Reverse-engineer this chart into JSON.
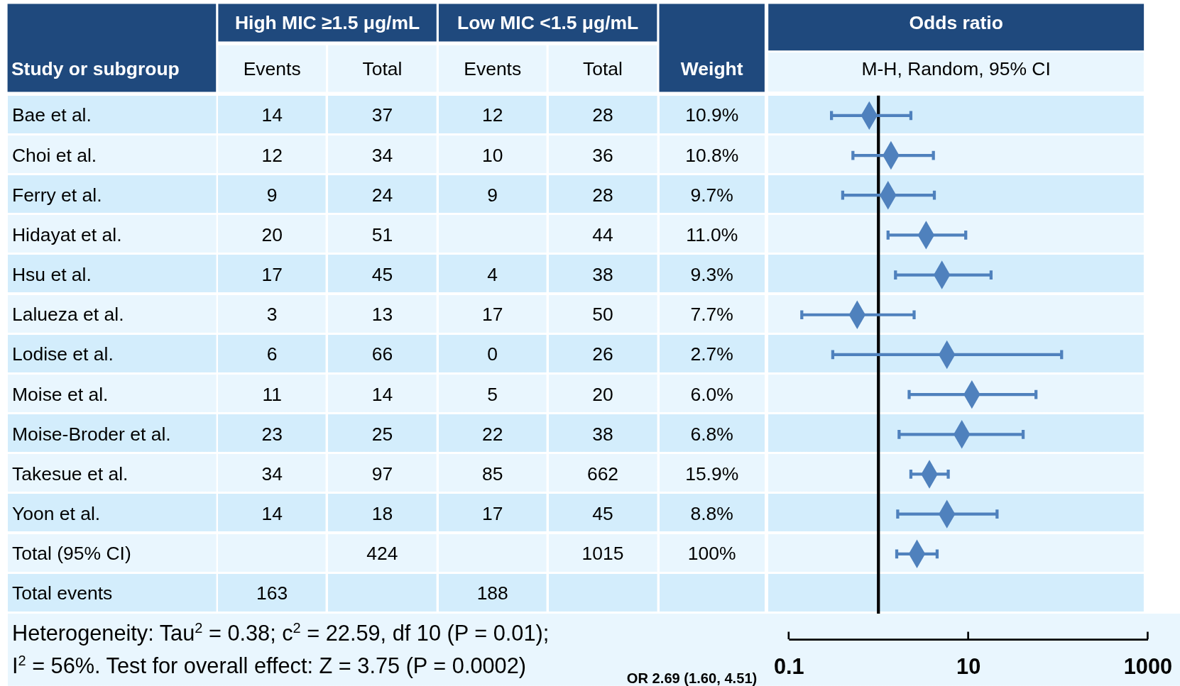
{
  "chart_data": [
    {
      "type": "other",
      "ylabel": "Study or subgroup",
      "categories": [
        "Events",
        "Total",
        "Events",
        "Total",
        "Weight"
      ],
      "y_categories": [
        "Bae et al.",
        "Choi et al.",
        "Ferry et al.",
        "Hidayat et al.",
        "Hsu et al.",
        "Lalueza et al.",
        "Lodise et al.",
        "Moise et al.",
        "Moise-Broder et al.",
        "Takesue et al.",
        "Yoon et al.",
        "Total (95% CI)",
        "Total events"
      ],
      "cell_labels": [
        [
          "14",
          "37",
          "12",
          "28",
          "10.9%"
        ],
        [
          "12",
          "34",
          "10",
          "36",
          "10.8%"
        ],
        [
          "9",
          "24",
          "9",
          "28",
          "9.7%"
        ],
        [
          "20",
          "51",
          null,
          "44",
          "11.0%"
        ],
        [
          "17",
          "45",
          "4",
          "38",
          "9.3%"
        ],
        [
          "3",
          "13",
          "17",
          "50",
          "7.7%"
        ],
        [
          "6",
          "66",
          "0",
          "26",
          "2.7%"
        ],
        [
          "11",
          "14",
          "5",
          "20",
          "6.0%"
        ],
        [
          "23",
          "25",
          "22",
          "38",
          "6.8%"
        ],
        [
          "34",
          "97",
          "85",
          "662",
          "15.9%"
        ],
        [
          "14",
          "18",
          "17",
          "45",
          "8.8%"
        ],
        [
          null,
          "424",
          null,
          "1015",
          "100%"
        ],
        [
          "163",
          null,
          "188",
          null,
          null
        ]
      ],
      "annotations": [
        "High MIC ≥1.5 μg/mL",
        "Low MIC <1.5 μg/mL",
        "Heterogeneity: Tau$^{2}$ = 0.38; c$^{2}$ = 22.59, df 10 (P = 0.01);",
        "I$^{2}$ = 56%. Test for overall effect: Z = 3.75 (P = 0.0002)"
      ]
    },
    {
      "type": "scatter",
      "title": "Odds ratio",
      "subtitle": "M-H, Random, 95% CI",
      "orientation": "horizontal",
      "categories": [
        null,
        null,
        null,
        null,
        null,
        null,
        null,
        null,
        null,
        null,
        null,
        null,
        null
      ],
      "color": "#4f81bd",
      "values": [
        0.79,
        1.38,
        1.28,
        3.4,
        5.1,
        0.58,
        5.8,
        11,
        8.5,
        3.7,
        5.8,
        2.69,
        null
      ],
      "errors": [
        [
          0.3,
          2.3
        ],
        [
          0.52,
          4.1
        ],
        [
          0.4,
          4.2
        ],
        [
          1.28,
          9.4
        ],
        [
          1.55,
          18
        ],
        [
          0.14,
          2.5
        ],
        [
          0.31,
          110
        ],
        [
          2.2,
          57
        ],
        [
          1.7,
          41
        ],
        [
          2.3,
          6.0
        ],
        [
          1.64,
          21
        ],
        [
          1.6,
          4.51
        ],
        null
      ],
      "marker": "diamond",
      "log": "x",
      "xlim": [
        0.1,
        1000
      ],
      "xticks": [
        0.1,
        10,
        1000
      ],
      "ref_lines": [
        {
          "axis": "x",
          "value": 1,
          "color": "#000000"
        }
      ],
      "annotations": [
        "OR 2.69 (1.60, 4.51)"
      ]
    }
  ]
}
